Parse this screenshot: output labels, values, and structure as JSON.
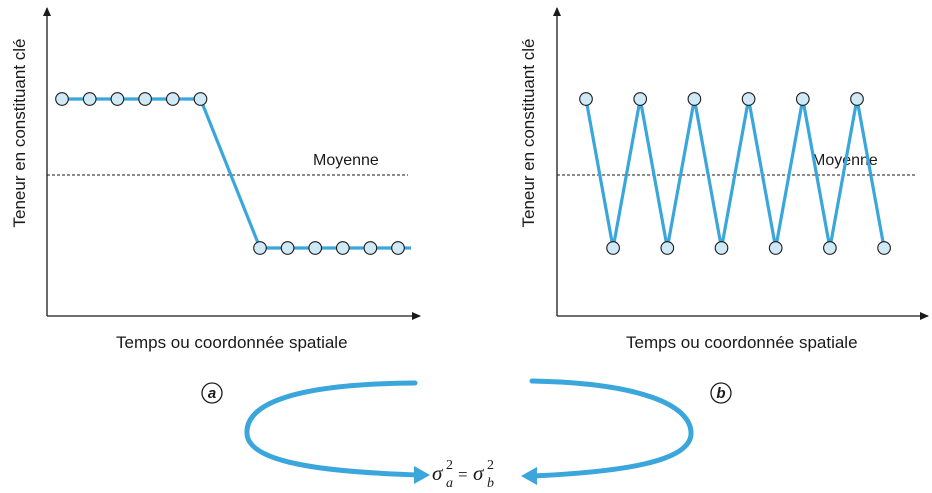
{
  "colors": {
    "accent": "#3aa6dc",
    "marker_fill": "#cfe9f6",
    "ink": "#1a1a1a"
  },
  "panels": [
    {
      "id": "a",
      "panel_label": "a",
      "y_axis_label": "Teneur en constituant clé",
      "x_axis_label": "Temps ou coordonnée spatiale",
      "mean_label": "Moyenne",
      "pattern": "step",
      "high_points": 6,
      "low_points": 6
    },
    {
      "id": "b",
      "panel_label": "b",
      "y_axis_label": "Teneur en constituant clé",
      "x_axis_label": "Temps ou coordonnée spatiale",
      "mean_label": "Moyenne",
      "pattern": "zigzag",
      "alternating_points": 12
    }
  ],
  "formula": {
    "symbol": "σ",
    "lhs_sub": "a",
    "lhs_sup": "2",
    "equals": "=",
    "rhs_sub": "b",
    "rhs_sup": "2"
  }
}
